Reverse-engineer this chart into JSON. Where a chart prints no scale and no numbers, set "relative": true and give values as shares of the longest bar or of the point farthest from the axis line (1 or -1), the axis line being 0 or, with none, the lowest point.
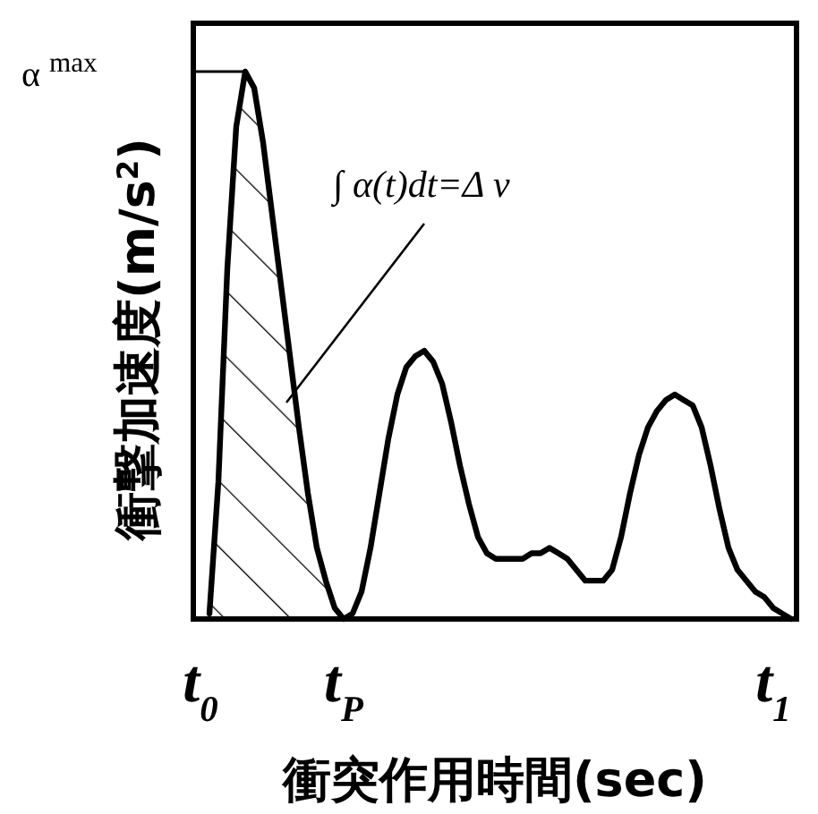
{
  "chart_data": {
    "type": "line",
    "relative": true,
    "xlabel": "衝突作用時間(sec)",
    "ylabel": "衝撃加速度(m/s$^{2}$)",
    "categories": [
      "t$_{0}$",
      null,
      null,
      null,
      null,
      null,
      null,
      null,
      null,
      null,
      null,
      null,
      null,
      null,
      null,
      null,
      "t$_{P}$",
      null,
      null,
      null,
      null,
      null,
      null,
      null,
      null,
      null,
      null,
      null,
      null,
      null,
      null,
      null,
      null,
      null,
      null,
      null,
      null,
      null,
      null,
      null,
      null,
      null,
      null,
      null,
      null,
      null,
      null,
      null,
      null,
      null,
      null,
      null,
      null,
      null,
      null,
      null,
      null,
      null,
      null,
      null,
      null,
      null,
      null,
      null,
      "t$_{1}$",
      null,
      null
    ],
    "series": [
      {
        "color": "#000000",
        "values": [
          null,
          0.01,
          0.25,
          0.64,
          0.9,
          1.0,
          0.97,
          0.87,
          0.74,
          0.61,
          0.48,
          0.35,
          0.23,
          0.13,
          0.07,
          0.02,
          0,
          0.01,
          0.05,
          0.13,
          0.23,
          0.33,
          0.41,
          0.46,
          0.48,
          0.49,
          0.47,
          0.43,
          0.36,
          0.28,
          0.21,
          0.15,
          0.12,
          0.11,
          0.11,
          0.11,
          0.11,
          0.12,
          0.12,
          0.13,
          0.12,
          0.11,
          0.09,
          0.07,
          0.07,
          0.07,
          0.09,
          0.15,
          0.23,
          0.3,
          0.35,
          0.38,
          0.4,
          0.41,
          0.4,
          0.39,
          0.35,
          0.28,
          0.2,
          0.13,
          0.09,
          0.07,
          0.05,
          0.04,
          0.02,
          0.01,
          0
        ]
      },
      {
        "type": "area",
        "color": "#000000",
        "values": [
          null,
          0.01,
          0.25,
          0.64,
          0.9,
          1.0,
          0.97,
          0.87,
          0.74,
          0.61,
          0.48,
          0.35,
          0.23,
          0.13,
          0.07,
          0.02,
          0,
          null,
          null,
          null,
          null,
          null,
          null,
          null,
          null,
          null,
          null,
          null,
          null,
          null,
          null,
          null,
          null,
          null,
          null,
          null,
          null,
          null,
          null,
          null,
          null,
          null,
          null,
          null,
          null,
          null,
          null,
          null,
          null,
          null,
          null,
          null,
          null,
          null,
          null,
          null,
          null,
          null,
          null,
          null,
          null,
          null,
          null,
          null,
          null,
          null,
          null
        ]
      }
    ],
    "annotations": [
      "α $^{max}$",
      "∫ α(t)dt=Δ v"
    ]
  }
}
